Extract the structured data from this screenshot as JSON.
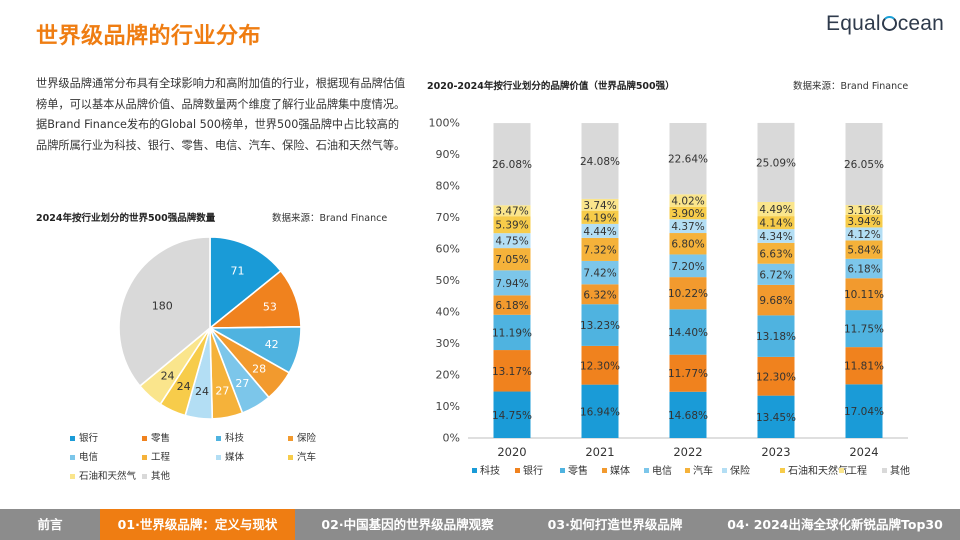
{
  "header": {
    "title": "世界级品牌的行业分布",
    "logo_left": "Equal",
    "logo_right": "cean"
  },
  "intro_text": "世界级品牌通常分布具有全球影响力和高附加值的行业，根据现有品牌估值榜单，可以基本从品牌价值、品牌数量两个维度了解行业品牌集中度情况。据Brand Finance发布的Global 500榜单，世界500强品牌中占比较高的品牌所属行业为科技、银行、零售、电信、汽车、保险、石油和天然气等。",
  "pie_section": {
    "title": "2024年按行业划分的世界500强品牌数量",
    "source": "数据来源：Brand Finance"
  },
  "bar_section": {
    "title": "2020-2024年按行业划分的品牌价值（世界品牌500强）",
    "source": "数据来源：Brand Finance"
  },
  "chart_data": [
    {
      "type": "pie",
      "title": "2024年按行业划分的世界500强品牌数量",
      "slices": [
        {
          "name": "银行",
          "value": 71,
          "color": "#1a9bd7"
        },
        {
          "name": "零售",
          "value": 53,
          "color": "#f0821e"
        },
        {
          "name": "科技",
          "value": 42,
          "color": "#4fb3e0"
        },
        {
          "name": "保险",
          "value": 28,
          "color": "#f29a2e"
        },
        {
          "name": "电信",
          "value": 27,
          "color": "#7cc6ea"
        },
        {
          "name": "工程",
          "value": 27,
          "color": "#f5b23a"
        },
        {
          "name": "媒体",
          "value": 24,
          "color": "#b3def4"
        },
        {
          "name": "汽车",
          "value": 24,
          "color": "#f7cc4a"
        },
        {
          "name": "石油和天然气",
          "value": 24,
          "color": "#fae58c"
        },
        {
          "name": "其他",
          "value": 180,
          "color": "#d9d9d9"
        }
      ],
      "legend_order": [
        "银行",
        "零售",
        "科技",
        "保险",
        "电信",
        "工程",
        "媒体",
        "汽车",
        "石油和天然气",
        "其他"
      ]
    },
    {
      "type": "bar",
      "stacked": true,
      "title": "2020-2024年按行业划分的品牌价值（世界品牌500强）",
      "categories": [
        "2020",
        "2021",
        "2022",
        "2023",
        "2024"
      ],
      "ylim": [
        0,
        100
      ],
      "yticks": [
        "0%",
        "10%",
        "20%",
        "30%",
        "40%",
        "50%",
        "60%",
        "70%",
        "80%",
        "90%",
        "100%"
      ],
      "series": [
        {
          "name": "科技",
          "color": "#1a9bd7",
          "values": [
            14.75,
            16.94,
            14.68,
            13.45,
            17.04
          ],
          "labels": [
            "14.75%",
            "16.94%",
            "14.68%",
            "13.45%",
            "17.04%"
          ]
        },
        {
          "name": "银行",
          "color": "#f0821e",
          "values": [
            13.17,
            12.3,
            11.77,
            12.3,
            11.81
          ],
          "labels": [
            "13.17%",
            "12.30%",
            "11.77%",
            "12.30%",
            "11.81%"
          ]
        },
        {
          "name": "零售",
          "color": "#4fb3e0",
          "values": [
            11.19,
            13.23,
            14.4,
            13.18,
            11.75
          ],
          "labels": [
            "11.19%",
            "13.23%",
            "14.40%",
            "13.18%",
            "11.75%"
          ]
        },
        {
          "name": "媒体",
          "color": "#f29a2e",
          "values": [
            6.18,
            6.32,
            10.22,
            9.68,
            10.11
          ],
          "labels": [
            "6.18%",
            "6.32%",
            "10.22%",
            "9.68%",
            "10.11%"
          ]
        },
        {
          "name": "电信",
          "color": "#7cc6ea",
          "values": [
            7.94,
            7.42,
            7.2,
            6.72,
            6.18
          ],
          "labels": [
            "7.94%",
            "7.42%",
            "7.20%",
            "6.72%",
            "6.18%"
          ]
        },
        {
          "name": "汽车",
          "color": "#f5b23a",
          "values": [
            7.05,
            7.32,
            6.8,
            6.63,
            5.84
          ],
          "labels": [
            "7.05%",
            "7.32%",
            "6.80%",
            "6.63%",
            "5.84%"
          ]
        },
        {
          "name": "保险",
          "color": "#b3def4",
          "values": [
            4.75,
            4.44,
            4.37,
            4.34,
            4.12
          ],
          "labels": [
            "4.75%",
            "4.44%",
            "4.37%",
            "4.34%",
            "4.12%"
          ]
        },
        {
          "name": "石油和天然气",
          "color": "#f7cc4a",
          "values": [
            5.39,
            4.19,
            3.9,
            4.14,
            3.94
          ],
          "labels": [
            "5.39%",
            "4.19%",
            "3.90%",
            "4.14%",
            "3.94%"
          ]
        },
        {
          "name": "工程",
          "color": "#fae58c",
          "values": [
            3.47,
            3.74,
            4.02,
            4.49,
            3.16
          ],
          "labels": [
            "3.47%",
            "3.74%",
            "4.02%",
            "4.49%",
            "3.16%"
          ]
        },
        {
          "name": "其他",
          "color": "#d9d9d9",
          "values": [
            26.08,
            24.08,
            22.64,
            25.09,
            26.05
          ],
          "labels": [
            "26.08%",
            "24.08%",
            "22.64%",
            "25.09%",
            "26.05%"
          ]
        }
      ]
    }
  ],
  "bottom_nav": [
    {
      "label": "前言",
      "active": false
    },
    {
      "label": "01·世界级品牌：定义与现状",
      "active": true
    },
    {
      "label": "02·中国基因的世界级品牌观察",
      "active": false
    },
    {
      "label": "03·如何打造世界级品牌",
      "active": false
    },
    {
      "label": "04· 2024出海全球化新锐品牌Top30",
      "active": false
    }
  ]
}
